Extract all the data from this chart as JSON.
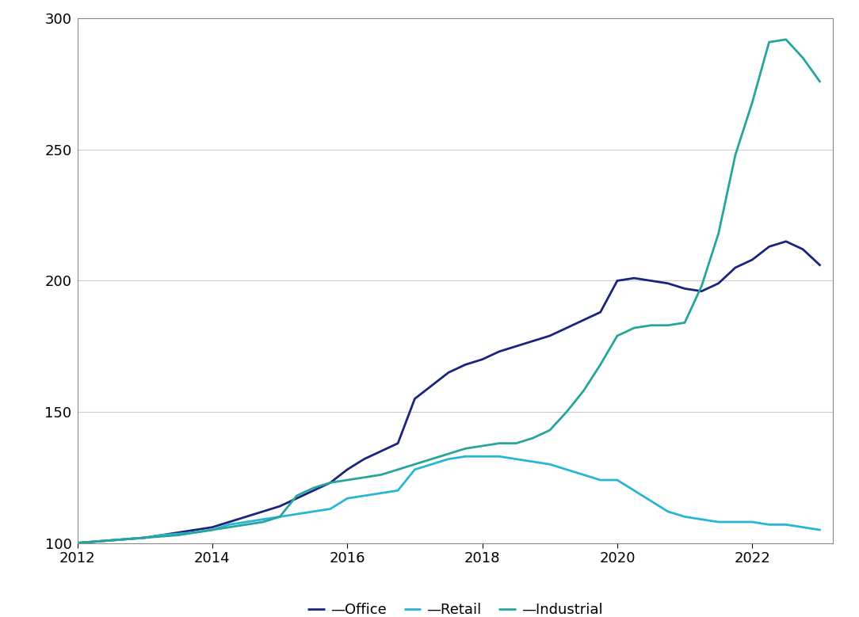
{
  "office": {
    "x": [
      2012.0,
      2012.25,
      2012.5,
      2012.75,
      2013.0,
      2013.25,
      2013.5,
      2013.75,
      2014.0,
      2014.25,
      2014.5,
      2014.75,
      2015.0,
      2015.25,
      2015.5,
      2015.75,
      2016.0,
      2016.25,
      2016.5,
      2016.75,
      2017.0,
      2017.25,
      2017.5,
      2017.75,
      2018.0,
      2018.25,
      2018.5,
      2018.75,
      2019.0,
      2019.25,
      2019.5,
      2019.75,
      2020.0,
      2020.25,
      2020.5,
      2020.75,
      2021.0,
      2021.25,
      2021.5,
      2021.75,
      2022.0,
      2022.25,
      2022.5,
      2022.75,
      2023.0
    ],
    "y": [
      100,
      100.5,
      101,
      101.5,
      102,
      103,
      104,
      105,
      106,
      108,
      110,
      112,
      114,
      117,
      120,
      123,
      128,
      132,
      135,
      138,
      155,
      160,
      165,
      168,
      170,
      173,
      175,
      177,
      179,
      182,
      185,
      188,
      200,
      201,
      200,
      199,
      197,
      196,
      199,
      205,
      208,
      213,
      215,
      212,
      206
    ]
  },
  "retail": {
    "x": [
      2012.0,
      2012.25,
      2012.5,
      2012.75,
      2013.0,
      2013.25,
      2013.5,
      2013.75,
      2014.0,
      2014.25,
      2014.5,
      2014.75,
      2015.0,
      2015.25,
      2015.5,
      2015.75,
      2016.0,
      2016.25,
      2016.5,
      2016.75,
      2017.0,
      2017.25,
      2017.5,
      2017.75,
      2018.0,
      2018.25,
      2018.5,
      2018.75,
      2019.0,
      2019.25,
      2019.5,
      2019.75,
      2020.0,
      2020.25,
      2020.5,
      2020.75,
      2021.0,
      2021.25,
      2021.5,
      2021.75,
      2022.0,
      2022.25,
      2022.5,
      2022.75,
      2023.0
    ],
    "y": [
      100,
      100.5,
      101,
      101.5,
      102,
      103,
      103.5,
      104,
      105,
      107,
      108,
      109,
      110,
      111,
      112,
      113,
      117,
      118,
      119,
      120,
      128,
      130,
      132,
      133,
      133,
      133,
      132,
      131,
      130,
      128,
      126,
      124,
      124,
      120,
      116,
      112,
      110,
      109,
      108,
      108,
      108,
      107,
      107,
      106,
      105
    ]
  },
  "industrial": {
    "x": [
      2012.0,
      2012.25,
      2012.5,
      2012.75,
      2013.0,
      2013.25,
      2013.5,
      2013.75,
      2014.0,
      2014.25,
      2014.5,
      2014.75,
      2015.0,
      2015.25,
      2015.5,
      2015.75,
      2016.0,
      2016.25,
      2016.5,
      2016.75,
      2017.0,
      2017.25,
      2017.5,
      2017.75,
      2018.0,
      2018.25,
      2018.5,
      2018.75,
      2019.0,
      2019.25,
      2019.5,
      2019.75,
      2020.0,
      2020.25,
      2020.5,
      2020.75,
      2021.0,
      2021.25,
      2021.5,
      2021.75,
      2022.0,
      2022.25,
      2022.5,
      2022.75,
      2023.0
    ],
    "y": [
      100,
      100.5,
      101,
      101.5,
      102,
      102.5,
      103,
      104,
      105,
      106,
      107,
      108,
      110,
      118,
      121,
      123,
      124,
      125,
      126,
      128,
      130,
      132,
      134,
      136,
      137,
      138,
      138,
      140,
      143,
      150,
      158,
      168,
      179,
      182,
      183,
      183,
      184,
      198,
      218,
      248,
      268,
      291,
      292,
      285,
      276
    ]
  },
  "office_color": "#1a237e",
  "retail_color": "#29b6d4",
  "industrial_color": "#26a69a",
  "ylim": [
    100,
    300
  ],
  "yticks": [
    100,
    150,
    200,
    250,
    300
  ],
  "xticks": [
    2012,
    2014,
    2016,
    2018,
    2020,
    2022
  ],
  "xlim_min": 2012.0,
  "xlim_max": 2023.2,
  "background_color": "#ffffff",
  "grid_color": "#cccccc",
  "line_width": 2.0,
  "legend_labels": [
    "Office",
    "Retail",
    "Industrial"
  ],
  "legend_colors": [
    "#1a237e",
    "#29b6d4",
    "#26a69a"
  ]
}
